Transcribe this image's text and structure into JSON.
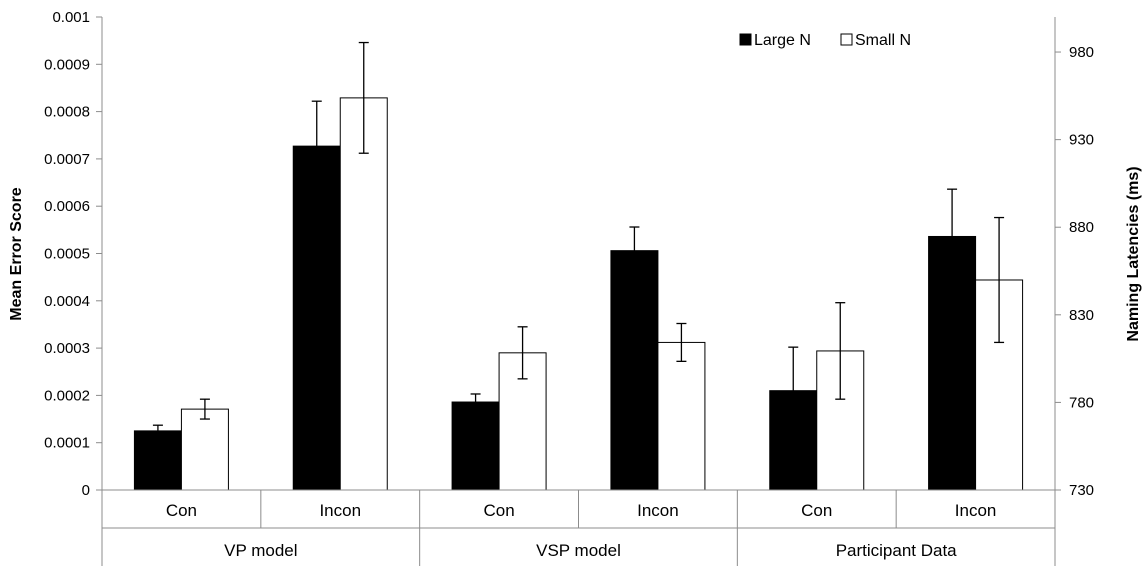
{
  "chart_data": {
    "type": "bar",
    "title": "",
    "ylabel": "Mean Error Score",
    "y2label": "Naming Latencies (ms)",
    "ylim": [
      0,
      0.001
    ],
    "yticks": [
      "0",
      "0.0001",
      "0.0002",
      "0.0003",
      "0.0004",
      "0.0005",
      "0.0006",
      "0.0007",
      "0.0008",
      "0.0009",
      "0.001"
    ],
    "y2lim": [
      730,
      1000
    ],
    "y2ticks": [
      "730",
      "780",
      "830",
      "880",
      "930",
      "980"
    ],
    "groups": [
      "VP model",
      "VSP model",
      "Participant Data"
    ],
    "categories": [
      "Con",
      "Incon",
      "Con",
      "Incon",
      "Con",
      "Incon"
    ],
    "legend_position": "top-right",
    "grid": false,
    "series": [
      {
        "name": "Large N",
        "color": "#000000",
        "values": [
          0.000125,
          0.000727,
          0.000186,
          0.000506,
          0.00021,
          0.000536
        ],
        "errors": [
          1.2e-05,
          9.5e-05,
          1.7e-05,
          5e-05,
          9.2e-05,
          0.0001
        ]
      },
      {
        "name": "Small N",
        "color": "#ffffff",
        "values": [
          0.000171,
          0.000829,
          0.00029,
          0.000312,
          0.000294,
          0.000444
        ],
        "errors": [
          2.1e-05,
          0.000117,
          5.5e-05,
          4e-05,
          0.000102,
          0.000132
        ]
      }
    ]
  }
}
